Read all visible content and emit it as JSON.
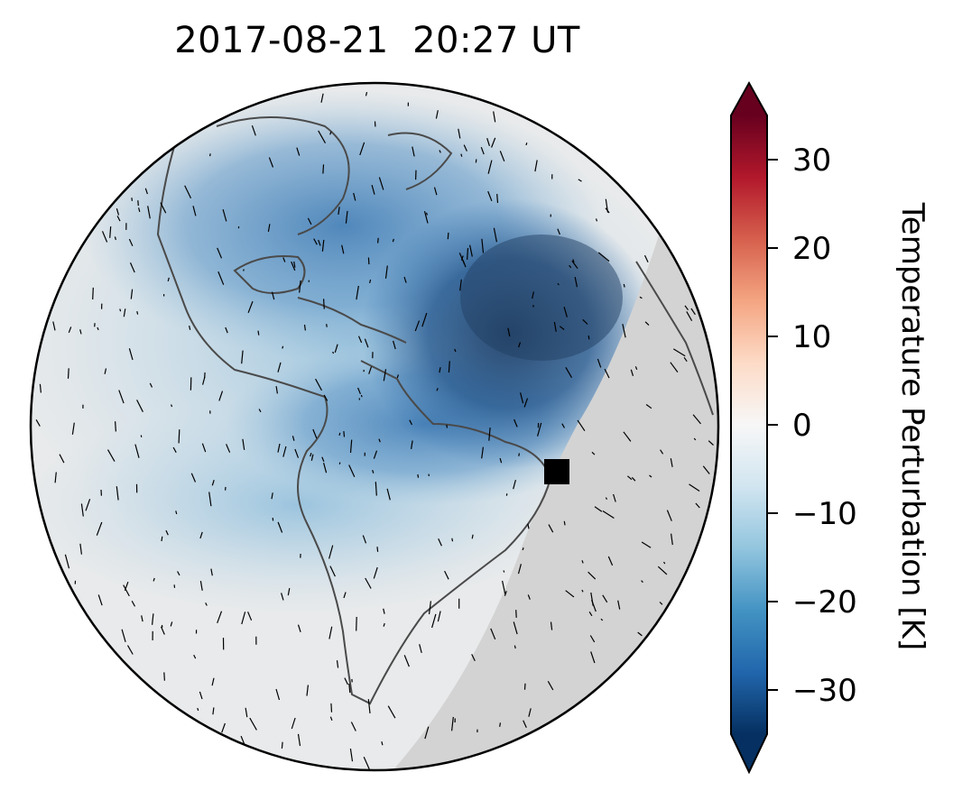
{
  "chart_data": {
    "type": "heatmap",
    "title": "2017-08-21  20:27 UT",
    "projection": "orthographic",
    "colormap": "RdBu_r",
    "colorbar": {
      "label": "Temperature Perturbation [K]",
      "vmin": -35,
      "vmax": 35,
      "ticks": [
        30,
        20,
        10,
        0,
        -10,
        -20,
        -30
      ],
      "tick_labels": [
        "30",
        "20",
        "10",
        "0",
        "−10",
        "−20",
        "−30"
      ],
      "extend": "both",
      "stops": [
        "#053061",
        "#2166ac",
        "#4393c3",
        "#92c5de",
        "#d1e5f0",
        "#f7f7f7",
        "#fddbc7",
        "#f4a582",
        "#d6604d",
        "#b2182b",
        "#67001f"
      ]
    },
    "marker": {
      "shape": "square",
      "color": "#000000"
    },
    "night_shade_color": "#d2d2d2",
    "coastline_color": "#4a4a4a"
  }
}
